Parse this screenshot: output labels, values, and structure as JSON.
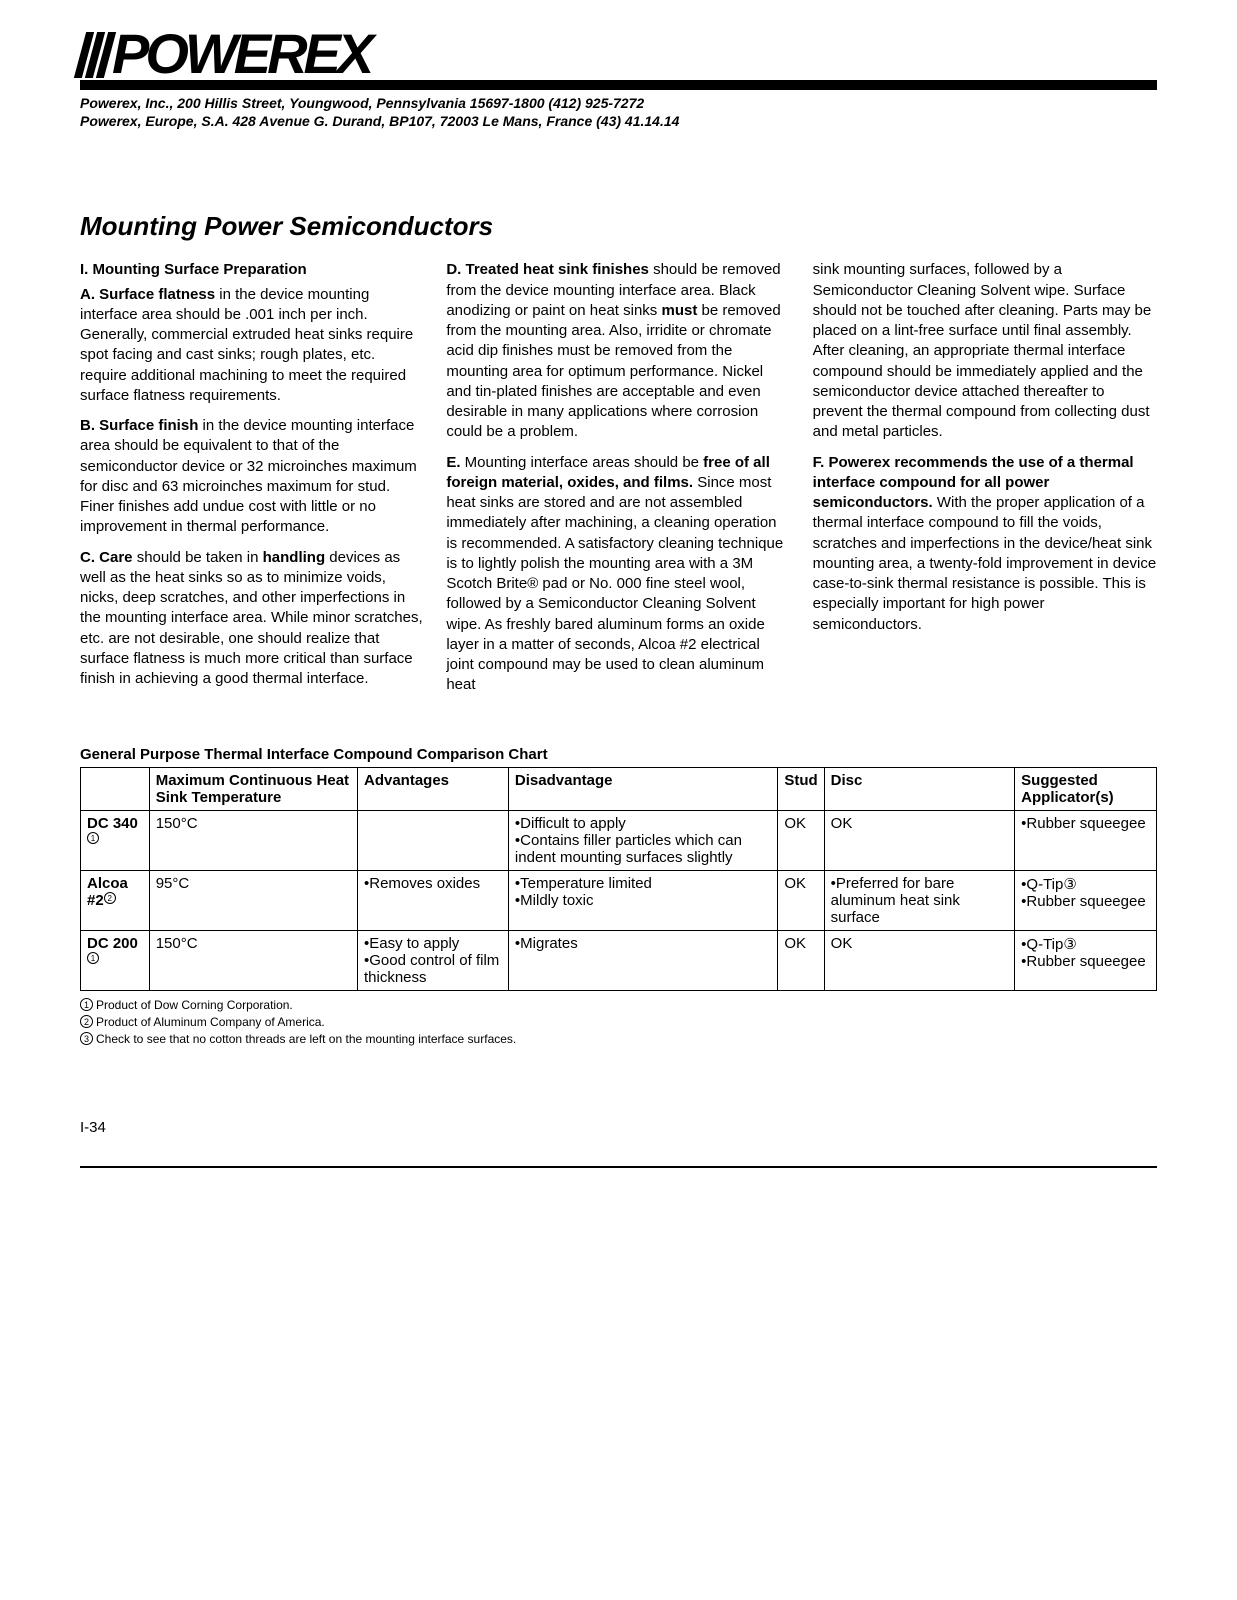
{
  "logo_text": "POWEREX",
  "company_lines": [
    "Powerex, Inc., 200 Hillis Street, Youngwood, Pennsylvania 15697-1800 (412) 925-7272",
    "Powerex, Europe, S.A. 428 Avenue G. Durand, BP107, 72003 Le Mans, France (43) 41.14.14"
  ],
  "title": "Mounting Power Semiconductors",
  "section_I_heading": "I. Mounting Surface Preparation",
  "item_A_label": "A. Surface flatness",
  "item_A_text": " in the device mounting interface area should be .001 inch per inch. Generally, commercial extruded heat sinks require spot facing and cast sinks; rough plates, etc. require additional machining to meet the required surface flatness requirements.",
  "item_B_label": "B. Surface finish",
  "item_B_text": " in the device mounting interface area should be equivalent to that of the semiconductor device or 32 microinches maximum for disc and 63 microinches maximum for stud. Finer finishes add undue cost with little or no improvement in thermal performance.",
  "item_C_label": "C. Care",
  "item_C_mid": " should be taken in ",
  "item_C_bold": "handling",
  "item_C_text": " devices as well as the heat sinks so as to minimize voids, nicks, deep scratches, and other imperfections in the mounting interface area. While minor scratches, etc. are not desirable, one should realize that surface flatness is much more critical than surface finish in achieving a good thermal interface.",
  "item_D_label": "D. Treated heat sink finishes",
  "item_D_text1": " should be removed from the device mounting interface area. Black anodizing or paint on heat sinks ",
  "item_D_must": "must",
  "item_D_text2": " be removed from the mounting area. Also, irridite or chromate acid dip finishes must be removed from the mounting area for optimum performance. Nickel and tin-plated finishes are acceptable and even desirable in many applications where corrosion could be a problem.",
  "item_E_label": "E.",
  "item_E_pre": " Mounting interface areas should be ",
  "item_E_bold": "free of all foreign material, oxides, and films.",
  "item_E_text": " Since most heat sinks are stored and are not assembled immediately after machining, a cleaning operation is recommended. A satisfactory cleaning technique is to lightly polish the mounting area with a 3M Scotch Brite® pad or No. 000 fine steel wool, followed by a Semiconductor Cleaning Solvent wipe. As freshly bared aluminum forms an oxide layer in a matter of seconds, Alcoa #2 electrical joint compound may be used to clean aluminum heat ",
  "col3_cont": "sink mounting surfaces, followed by a Semiconductor Cleaning Solvent wipe. Surface should not be touched after cleaning. Parts may be placed on a lint-free surface until final assembly. After cleaning, an appropriate thermal interface compound should be immediately applied and the semiconductor device attached thereafter to prevent the thermal compound from collecting dust and metal particles.",
  "item_F_label": "F. Powerex recommends the use of a thermal interface compound for all power semiconductors.",
  "item_F_text": " With the proper application of a thermal interface compound to fill the voids, scratches and imperfections in the device/heat sink mounting area, a twenty-fold improvement in device case-to-sink thermal resistance is possible. This is especially important for high power semiconductors.",
  "chart_title": "General Purpose Thermal Interface Compound Comparison Chart",
  "table": {
    "headers": [
      "",
      "Maximum Continuous Heat Sink Temperature",
      "Advantages",
      "Disadvantage",
      "Stud",
      "Disc",
      "Suggested Applicator(s)"
    ],
    "rows": [
      {
        "name": "DC 340",
        "mark": "1",
        "temp": "150°C",
        "adv": "",
        "dis": "•Difficult to apply\n•Contains filler particles which can indent mounting surfaces slightly",
        "stud": "OK",
        "disc": "OK",
        "app": "•Rubber squeegee"
      },
      {
        "name": "Alcoa #2",
        "mark": "2",
        "temp": "95°C",
        "adv": "•Removes oxides",
        "dis": "•Temperature limited\n•Mildly toxic",
        "stud": "OK",
        "disc": "•Preferred for bare aluminum heat sink surface",
        "app": "•Q-Tip③\n•Rubber squeegee"
      },
      {
        "name": "DC 200",
        "mark": "1",
        "temp": "150°C",
        "adv": "•Easy to apply\n•Good control of film thickness",
        "dis": "•Migrates",
        "stud": "OK",
        "disc": "OK",
        "app": "•Q-Tip③\n•Rubber squeegee"
      }
    ]
  },
  "footnotes": [
    {
      "mark": "1",
      "text": "Product of Dow Corning Corporation."
    },
    {
      "mark": "2",
      "text": "Product of Aluminum Company of America."
    },
    {
      "mark": "3",
      "text": "Check to see that no cotton threads are left on the mounting interface surfaces."
    }
  ],
  "page_number": "I-34"
}
